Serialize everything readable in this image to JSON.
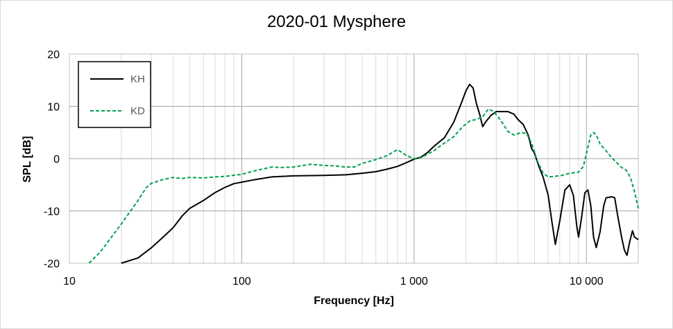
{
  "chart_data": {
    "type": "line",
    "title": "2020-01 Mysphere",
    "xlabel": "Frequency [Hz]",
    "ylabel": "SPL [dB]",
    "x_scale": "log",
    "xlim": [
      10,
      20000
    ],
    "ylim": [
      -20,
      20
    ],
    "x_ticks": [
      10,
      100,
      1000,
      10000
    ],
    "x_tick_labels": [
      "10",
      "100",
      "1 000",
      "10 000"
    ],
    "y_ticks": [
      -20,
      -10,
      0,
      10,
      20
    ],
    "y_tick_labels": [
      "-20",
      "-10",
      "0",
      "10",
      "20"
    ],
    "grid": true,
    "legend_position": "top-left",
    "series": [
      {
        "name": "KH",
        "color": "#000000",
        "style": "solid",
        "points": [
          [
            20,
            -20
          ],
          [
            25,
            -19
          ],
          [
            30,
            -17
          ],
          [
            35,
            -15
          ],
          [
            40,
            -13.2
          ],
          [
            45,
            -11
          ],
          [
            50,
            -9.5
          ],
          [
            60,
            -8
          ],
          [
            70,
            -6.5
          ],
          [
            80,
            -5.5
          ],
          [
            90,
            -4.8
          ],
          [
            100,
            -4.5
          ],
          [
            120,
            -4
          ],
          [
            150,
            -3.5
          ],
          [
            200,
            -3.3
          ],
          [
            300,
            -3.2
          ],
          [
            400,
            -3.1
          ],
          [
            500,
            -2.8
          ],
          [
            600,
            -2.5
          ],
          [
            700,
            -2
          ],
          [
            800,
            -1.5
          ],
          [
            900,
            -0.8
          ],
          [
            1000,
            -0.1
          ],
          [
            1100,
            0.3
          ],
          [
            1200,
            1.2
          ],
          [
            1300,
            2.3
          ],
          [
            1500,
            4
          ],
          [
            1700,
            7
          ],
          [
            1900,
            11
          ],
          [
            2000,
            13
          ],
          [
            2100,
            14.2
          ],
          [
            2200,
            13.5
          ],
          [
            2300,
            10.5
          ],
          [
            2400,
            8.5
          ],
          [
            2500,
            6.1
          ],
          [
            2600,
            7
          ],
          [
            2800,
            8.3
          ],
          [
            3000,
            9
          ],
          [
            3500,
            9
          ],
          [
            3800,
            8.5
          ],
          [
            4000,
            7.5
          ],
          [
            4300,
            6.5
          ],
          [
            4600,
            4.5
          ],
          [
            4800,
            2
          ],
          [
            5000,
            1
          ],
          [
            5300,
            -1.5
          ],
          [
            5600,
            -3.5
          ],
          [
            6000,
            -7
          ],
          [
            6300,
            -12
          ],
          [
            6600,
            -16.4
          ],
          [
            7000,
            -12
          ],
          [
            7500,
            -6
          ],
          [
            8000,
            -5
          ],
          [
            8400,
            -7
          ],
          [
            8800,
            -13
          ],
          [
            9000,
            -15
          ],
          [
            9400,
            -11
          ],
          [
            9800,
            -6.5
          ],
          [
            10200,
            -6
          ],
          [
            10600,
            -9
          ],
          [
            11000,
            -15
          ],
          [
            11400,
            -17
          ],
          [
            12000,
            -14
          ],
          [
            12600,
            -9
          ],
          [
            13000,
            -7.5
          ],
          [
            14000,
            -7.3
          ],
          [
            14600,
            -7.5
          ],
          [
            15200,
            -11
          ],
          [
            16000,
            -15
          ],
          [
            16600,
            -17.5
          ],
          [
            17200,
            -18.5
          ],
          [
            17800,
            -16
          ],
          [
            18500,
            -13.8
          ],
          [
            19000,
            -15
          ],
          [
            20000,
            -15.5
          ]
        ]
      },
      {
        "name": "KD",
        "color": "#00a050",
        "style": "dashed",
        "points": [
          [
            13,
            -20
          ],
          [
            15,
            -18
          ],
          [
            20,
            -12.5
          ],
          [
            25,
            -8
          ],
          [
            28,
            -5.5
          ],
          [
            30,
            -4.7
          ],
          [
            35,
            -4
          ],
          [
            40,
            -3.6
          ],
          [
            45,
            -3.8
          ],
          [
            50,
            -3.6
          ],
          [
            60,
            -3.7
          ],
          [
            70,
            -3.5
          ],
          [
            80,
            -3.4
          ],
          [
            100,
            -3
          ],
          [
            120,
            -2.3
          ],
          [
            150,
            -1.6
          ],
          [
            170,
            -1.7
          ],
          [
            200,
            -1.6
          ],
          [
            250,
            -1.1
          ],
          [
            300,
            -1.3
          ],
          [
            350,
            -1.4
          ],
          [
            400,
            -1.6
          ],
          [
            450,
            -1.6
          ],
          [
            500,
            -0.9
          ],
          [
            600,
            -0.2
          ],
          [
            700,
            0.6
          ],
          [
            750,
            1.2
          ],
          [
            800,
            1.7
          ],
          [
            850,
            1.2
          ],
          [
            900,
            0.6
          ],
          [
            1000,
            0
          ],
          [
            1100,
            0.2
          ],
          [
            1300,
            1.5
          ],
          [
            1500,
            3
          ],
          [
            1700,
            4.2
          ],
          [
            1900,
            6
          ],
          [
            2100,
            7.2
          ],
          [
            2300,
            7.5
          ],
          [
            2500,
            8
          ],
          [
            2700,
            9.5
          ],
          [
            2900,
            9
          ],
          [
            3200,
            7.2
          ],
          [
            3500,
            5.2
          ],
          [
            3800,
            4.5
          ],
          [
            4200,
            5
          ],
          [
            4500,
            4.8
          ],
          [
            4800,
            3
          ],
          [
            5200,
            -0.5
          ],
          [
            5600,
            -2.8
          ],
          [
            6000,
            -3.5
          ],
          [
            6500,
            -3.4
          ],
          [
            7200,
            -3.2
          ],
          [
            7800,
            -2.9
          ],
          [
            8400,
            -2.7
          ],
          [
            9000,
            -2.6
          ],
          [
            9600,
            -1.5
          ],
          [
            10000,
            1
          ],
          [
            10600,
            4.5
          ],
          [
            11000,
            5
          ],
          [
            11400,
            4.5
          ],
          [
            12000,
            2.8
          ],
          [
            13000,
            1.5
          ],
          [
            14000,
            0.2
          ],
          [
            15000,
            -0.8
          ],
          [
            16000,
            -1.7
          ],
          [
            17000,
            -2.2
          ],
          [
            18000,
            -3.6
          ],
          [
            19000,
            -6.3
          ],
          [
            20000,
            -9.5
          ]
        ]
      }
    ]
  }
}
